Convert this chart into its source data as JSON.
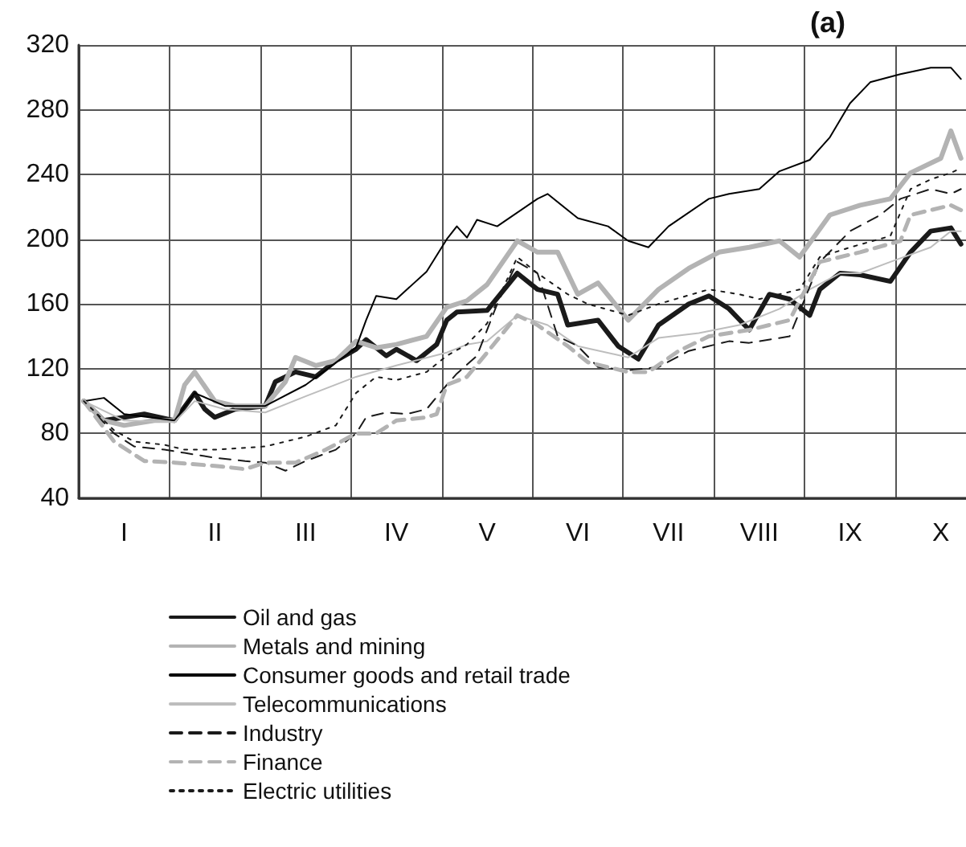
{
  "chart_data": {
    "type": "line",
    "title": "(a)",
    "categories": [
      null,
      null,
      null,
      null,
      "I",
      null,
      null,
      null,
      null,
      null,
      null,
      null,
      null,
      "II",
      null,
      null,
      null,
      null,
      null,
      null,
      null,
      null,
      "III",
      null,
      null,
      null,
      null,
      null,
      null,
      null,
      null,
      "IV",
      null,
      null,
      null,
      null,
      null,
      null,
      null,
      null,
      "V",
      null,
      null,
      null,
      null,
      null,
      null,
      null,
      null,
      "VI",
      null,
      null,
      null,
      null,
      null,
      null,
      null,
      null,
      "VII",
      null,
      null,
      null,
      null,
      null,
      null,
      null,
      null,
      "VIII",
      null,
      null,
      null,
      null,
      null,
      null,
      null,
      null,
      "IX",
      null,
      null,
      null,
      null,
      null,
      null,
      null,
      null,
      "X",
      null,
      null
    ],
    "ylim": [
      40,
      320
    ],
    "yticks": [
      40,
      80,
      120,
      160,
      200,
      240,
      280,
      320
    ],
    "grid": true,
    "legend": "bottom",
    "marker": "none",
    "series": [
      {
        "name": "Oil and gas",
        "color": "#1a1a1a",
        "line_style": "solid",
        "values": [
          100,
          null,
          88,
          null,
          90,
          null,
          92,
          null,
          null,
          88,
          null,
          105,
          95,
          90,
          null,
          95,
          null,
          null,
          97,
          112,
          null,
          118,
          null,
          115,
          null,
          125,
          null,
          132,
          138,
          null,
          128,
          132,
          null,
          125,
          null,
          135,
          150,
          155,
          null,
          null,
          156,
          null,
          null,
          179,
          null,
          169,
          null,
          166,
          147,
          null,
          null,
          150,
          null,
          134,
          null,
          126,
          null,
          147,
          null,
          null,
          160,
          null,
          165,
          null,
          157,
          null,
          144,
          null,
          166,
          null,
          163,
          null,
          153,
          169,
          null,
          179,
          null,
          178,
          null,
          null,
          174,
          null,
          192,
          null,
          205,
          null,
          207,
          197
        ]
      },
      {
        "name": "Metals and mining",
        "color": "#b3b3b3",
        "line_style": "solid",
        "values": [
          100,
          null,
          88,
          null,
          85,
          null,
          null,
          88,
          null,
          88,
          110,
          118,
          null,
          100,
          null,
          97,
          null,
          null,
          97,
          null,
          112,
          127,
          null,
          122,
          null,
          125,
          null,
          137,
          null,
          133,
          null,
          135,
          null,
          null,
          140,
          null,
          158,
          null,
          162,
          null,
          172,
          null,
          null,
          199,
          null,
          192,
          null,
          192,
          null,
          166,
          null,
          173,
          null,
          null,
          150,
          null,
          null,
          169,
          null,
          null,
          182,
          null,
          null,
          192,
          null,
          null,
          195,
          null,
          null,
          199,
          null,
          189,
          null,
          null,
          215,
          null,
          null,
          221,
          null,
          null,
          225,
          null,
          241,
          null,
          null,
          250,
          267,
          250
        ]
      },
      {
        "name": "Consumer goods and retail trade",
        "color": "#000000",
        "line_style": "solid",
        "values": [
          100,
          null,
          102,
          null,
          92,
          null,
          null,
          null,
          null,
          88,
          null,
          105,
          null,
          null,
          97,
          null,
          null,
          null,
          97,
          null,
          null,
          null,
          110,
          null,
          null,
          null,
          null,
          133,
          150,
          165,
          null,
          163,
          null,
          null,
          180,
          null,
          200,
          208,
          201,
          212,
          null,
          208,
          null,
          null,
          null,
          225,
          228,
          null,
          null,
          213,
          null,
          null,
          208,
          null,
          199,
          null,
          195,
          null,
          208,
          null,
          null,
          null,
          225,
          null,
          228,
          null,
          null,
          231,
          null,
          242,
          null,
          null,
          249,
          null,
          263,
          null,
          284,
          null,
          297,
          null,
          null,
          302,
          null,
          null,
          306,
          null,
          306,
          299
        ]
      },
      {
        "name": "Telecommunications",
        "color": "#bdbdbd",
        "line_style": "solid",
        "values": [
          100,
          null,
          null,
          null,
          88,
          null,
          null,
          null,
          null,
          87,
          null,
          100,
          null,
          null,
          95,
          null,
          null,
          null,
          93,
          null,
          null,
          null,
          103,
          null,
          null,
          null,
          null,
          115,
          null,
          null,
          null,
          122,
          null,
          null,
          null,
          null,
          130,
          null,
          135,
          null,
          137,
          null,
          null,
          153,
          null,
          null,
          147,
          null,
          null,
          134,
          null,
          null,
          null,
          null,
          127,
          null,
          null,
          139,
          null,
          null,
          null,
          142,
          null,
          null,
          null,
          147,
          null,
          null,
          null,
          157,
          null,
          null,
          169,
          null,
          null,
          179,
          null,
          179,
          null,
          null,
          186,
          null,
          null,
          null,
          195,
          null,
          205,
          205
        ]
      },
      {
        "name": "Industry",
        "color": "#1a1a1a",
        "line_style": "dashed",
        "values": [
          100,
          null,
          null,
          80,
          null,
          72,
          null,
          null,
          70,
          null,
          68,
          null,
          null,
          65,
          null,
          null,
          63,
          null,
          62,
          null,
          57,
          null,
          63,
          null,
          null,
          70,
          null,
          80,
          90,
          null,
          93,
          null,
          92,
          null,
          95,
          null,
          110,
          117,
          null,
          128,
          null,
          160,
          null,
          186,
          null,
          179,
          null,
          140,
          null,
          134,
          null,
          121,
          null,
          null,
          119,
          null,
          null,
          121,
          null,
          null,
          131,
          null,
          null,
          null,
          137,
          null,
          136,
          null,
          null,
          null,
          140,
          null,
          null,
          186,
          null,
          null,
          205,
          null,
          null,
          215,
          null,
          225,
          null,
          null,
          231,
          null,
          228,
          231
        ]
      },
      {
        "name": "Finance",
        "color": "#b3b3b3",
        "line_style": "dashed",
        "values": [
          100,
          null,
          null,
          75,
          null,
          null,
          63,
          null,
          null,
          62,
          null,
          null,
          null,
          60,
          null,
          null,
          58,
          null,
          62,
          null,
          null,
          62,
          null,
          null,
          70,
          null,
          null,
          80,
          null,
          80,
          null,
          88,
          null,
          null,
          90,
          92,
          110,
          null,
          115,
          null,
          130,
          null,
          null,
          153,
          null,
          147,
          null,
          null,
          134,
          null,
          124,
          null,
          null,
          null,
          118,
          null,
          118,
          null,
          null,
          131,
          null,
          null,
          140,
          null,
          null,
          null,
          144,
          null,
          null,
          null,
          150,
          null,
          null,
          186,
          null,
          null,
          null,
          192,
          null,
          null,
          null,
          199,
          215,
          null,
          218,
          null,
          221,
          218
        ]
      },
      {
        "name": "Electric utilities",
        "color": "#1a1a1a",
        "line_style": "dotted",
        "values": [
          100,
          null,
          null,
          82,
          null,
          75,
          null,
          null,
          73,
          null,
          70,
          null,
          null,
          70,
          null,
          null,
          null,
          null,
          72,
          null,
          null,
          null,
          78,
          null,
          null,
          85,
          null,
          105,
          null,
          115,
          null,
          113,
          null,
          null,
          118,
          null,
          128,
          null,
          135,
          null,
          148,
          null,
          null,
          189,
          null,
          179,
          null,
          null,
          166,
          null,
          160,
          null,
          null,
          null,
          153,
          null,
          null,
          160,
          null,
          null,
          null,
          null,
          169,
          null,
          null,
          166,
          null,
          163,
          null,
          null,
          null,
          169,
          null,
          189,
          null,
          null,
          195,
          null,
          null,
          null,
          202,
          null,
          231,
          null,
          237,
          null,
          241,
          244
        ]
      }
    ]
  }
}
